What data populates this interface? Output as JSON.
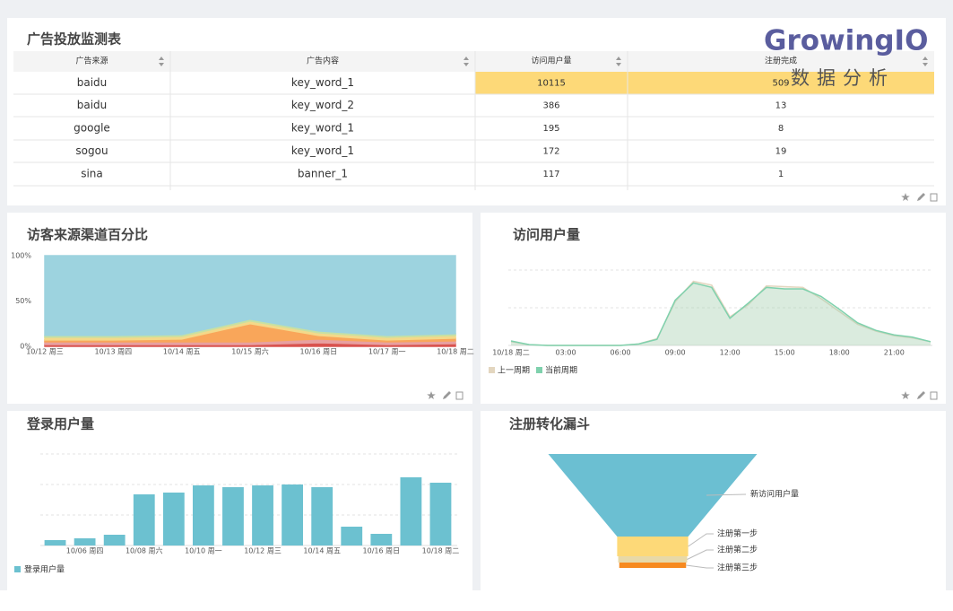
{
  "table": {
    "title": "广告投放监测表",
    "columns": [
      "广告来源",
      "广告内容",
      "访问用户量",
      "注册完成"
    ],
    "rows": [
      [
        "baidu",
        "key_word_1",
        10115,
        509
      ],
      [
        "baidu",
        "key_word_2",
        386,
        13
      ],
      [
        "google",
        "key_word_1",
        195,
        8
      ],
      [
        "sogou",
        "key_word_1",
        172,
        19
      ],
      [
        "sina",
        "banner_1",
        117,
        1
      ]
    ]
  },
  "logo": {
    "name": "GrowingIO",
    "tagline": "数据分析"
  },
  "chart_data": [
    {
      "type": "area",
      "stacked": "percent",
      "title": "访客来源渠道百分比",
      "categories": [
        "10/12 周三",
        "10/13 周四",
        "10/14 周五",
        "10/15 周六",
        "10/16 周日",
        "10/17 周一",
        "10/18 周二"
      ],
      "series": [
        {
          "color": "#d9534f",
          "values": [
            2,
            2,
            2,
            2,
            4,
            2,
            3
          ]
        },
        {
          "color": "#e8a0a0",
          "values": [
            3,
            3,
            3,
            3,
            4,
            3,
            3
          ]
        },
        {
          "color": "#f9a65a",
          "values": [
            2,
            2,
            3,
            20,
            4,
            2,
            3
          ]
        },
        {
          "color": "#f3d98a",
          "values": [
            3,
            3,
            3,
            3,
            3,
            3,
            3
          ]
        },
        {
          "color": "#c7e0a3",
          "values": [
            2,
            2,
            2,
            2,
            2,
            2,
            2
          ]
        },
        {
          "color": "#9dd3df",
          "values": [
            88,
            88,
            87,
            70,
            83,
            88,
            86
          ]
        }
      ],
      "ylim": [
        0,
        100
      ],
      "yticks": [
        {
          "value": 0,
          "label": "0%"
        },
        {
          "value": 50,
          "label": "50%"
        },
        {
          "value": 100,
          "label": "100%"
        }
      ]
    },
    {
      "type": "line",
      "title": "访问用户量",
      "categories": [
        "10/18 周二",
        null,
        null,
        "03:00",
        null,
        null,
        "06:00",
        null,
        null,
        "09:00",
        null,
        null,
        "12:00",
        null,
        null,
        "15:00",
        null,
        null,
        "18:00",
        null,
        null,
        "21:00",
        null,
        null
      ],
      "ylim": [
        0,
        100
      ],
      "legend": "bottom-left",
      "series": [
        {
          "name": "上一周期",
          "color": "#e3d6bf",
          "values": [
            5,
            1,
            0,
            0,
            0,
            0,
            0,
            2,
            9,
            58,
            85,
            80,
            38,
            54,
            79,
            78,
            77,
            62,
            45,
            28,
            19,
            13,
            10,
            5
          ]
        },
        {
          "name": "当前周期",
          "color": "#7fd1ad",
          "values": [
            6,
            1,
            0,
            0,
            0,
            0,
            0,
            2,
            8,
            60,
            83,
            77,
            36,
            56,
            77,
            75,
            75,
            65,
            48,
            30,
            20,
            14,
            11,
            5
          ]
        }
      ]
    },
    {
      "type": "bar",
      "title": "登录用户量",
      "categories": [
        null,
        "10/06 周四",
        null,
        "10/08 周六",
        null,
        "10/10 周一",
        null,
        "10/12 周三",
        null,
        "10/14 周五",
        null,
        "10/16 周日",
        null,
        "10/18 周二"
      ],
      "ylim": [
        0,
        100
      ],
      "legend": "bottom-left",
      "series": [
        {
          "name": "登录用户量",
          "color": "#6cc1d0",
          "values": [
            6,
            8,
            12,
            57,
            59,
            67,
            65,
            67,
            68,
            65,
            21,
            13,
            76,
            70
          ]
        }
      ]
    },
    {
      "type": "funnel",
      "title": "注册转化漏斗",
      "categories": [
        "新访问用户量",
        "注册第一步",
        "注册第二步",
        "注册第三步"
      ],
      "values": [
        100,
        34,
        33,
        32
      ],
      "colors": [
        "#6bbfd2",
        "#fdd978",
        "#e8d9a8",
        "#f78a1f"
      ]
    }
  ]
}
